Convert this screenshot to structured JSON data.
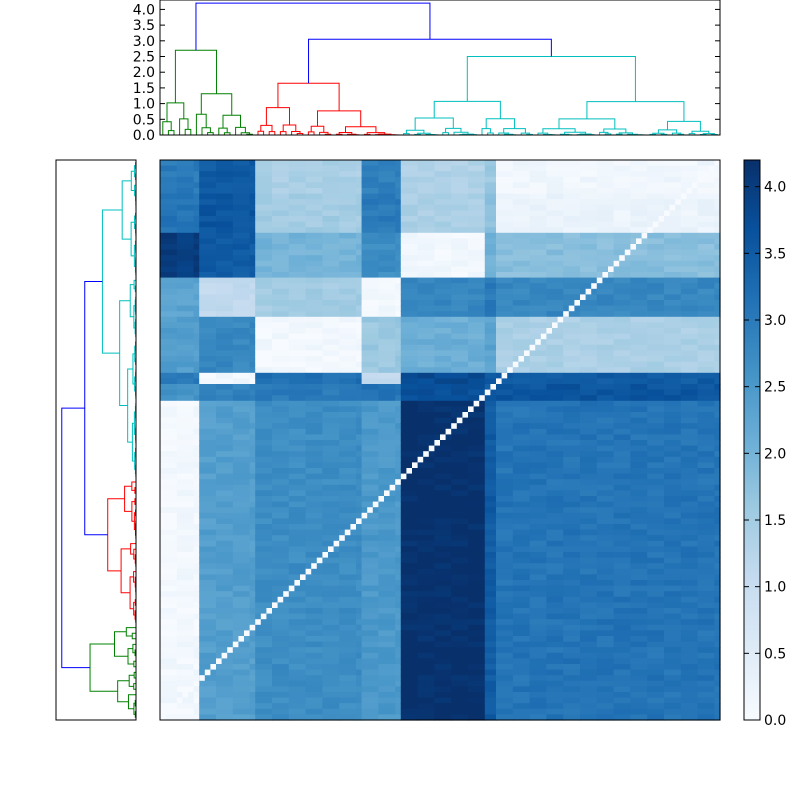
{
  "chart_data": [
    {
      "type": "dendrogram",
      "orientation": "top",
      "title": "",
      "xlabel": "",
      "ylabel": "",
      "ylim": [
        0,
        4.3
      ],
      "y_ticks": [
        0.0,
        0.5,
        1.0,
        1.5,
        2.0,
        2.5,
        3.0,
        3.5,
        4.0
      ],
      "y_tick_labels": [
        "0.0",
        "0.5",
        "1.0",
        "1.5",
        "2.0",
        "2.5",
        "3.0",
        "3.5",
        "4.0"
      ],
      "cluster_colors": {
        "link": "#0000ff",
        "green": "#008000",
        "red": "#ff0000",
        "cyan": "#00bfbf"
      },
      "clusters": [
        {
          "color": "green",
          "leaf_range": [
            0,
            17
          ],
          "merge_height": 2.7
        },
        {
          "color": "red",
          "leaf_range": [
            17,
            43
          ],
          "merge_height": 1.65
        },
        {
          "color": "cyan",
          "leaf_range": [
            43,
            100
          ],
          "merge_height": 2.5
        }
      ],
      "top_links": [
        {
          "between": [
            "red",
            "cyan"
          ],
          "height": 3.05
        },
        {
          "between": [
            "green",
            "red+cyan"
          ],
          "height": 4.2
        }
      ]
    },
    {
      "type": "dendrogram",
      "orientation": "left",
      "title": "",
      "xlabel": "",
      "ylabel": "",
      "axis_ticks_shown": false,
      "clusters": [
        {
          "color": "green",
          "position": "bottom",
          "merge_height": 2.6
        },
        {
          "color": "red",
          "position": "middle",
          "merge_height": 1.6
        },
        {
          "color": "cyan",
          "position": "top",
          "merge_height": 1.9
        }
      ],
      "top_links": [
        {
          "between": [
            "red",
            "cyan"
          ],
          "height": 2.9
        },
        {
          "between": [
            "green",
            "red+cyan"
          ],
          "height": 4.2
        }
      ]
    },
    {
      "type": "heatmap",
      "title": "",
      "xlabel": "",
      "ylabel": "",
      "colormap": "Blues",
      "n_cells": 100,
      "x_block_bounds": [
        0,
        7,
        17,
        36,
        43,
        58,
        60,
        100
      ],
      "y_block_bounds": [
        0,
        6,
        13,
        21,
        28,
        38,
        40,
        43,
        100
      ],
      "block_values": [
        [
          3.0,
          3.5,
          1.4,
          2.9,
          1.35,
          1.6,
          0.15
        ],
        [
          3.1,
          3.6,
          1.5,
          3.0,
          1.4,
          1.7,
          0.25
        ],
        [
          4.0,
          3.5,
          2.0,
          2.7,
          0.1,
          2.0,
          1.8
        ],
        [
          2.3,
          1.1,
          1.5,
          0.1,
          2.8,
          3.0,
          2.8
        ],
        [
          2.4,
          2.8,
          0.1,
          1.6,
          2.1,
          2.3,
          1.4
        ],
        [
          3.0,
          0.1,
          3.2,
          1.0,
          3.8,
          3.6,
          3.5
        ],
        [
          2.6,
          2.9,
          3.0,
          3.1,
          3.7,
          3.5,
          3.6
        ],
        [
          0.1,
          2.4,
          2.7,
          2.5,
          4.2,
          3.5,
          3.1
        ]
      ]
    },
    {
      "type": "colorbar",
      "colormap": "Blues",
      "ylim": [
        0,
        4.2
      ],
      "ticks": [
        0.0,
        0.5,
        1.0,
        1.5,
        2.0,
        2.5,
        3.0,
        3.5,
        4.0
      ],
      "tick_labels": [
        "0.0",
        "0.5",
        "1.0",
        "1.5",
        "2.0",
        "2.5",
        "3.0",
        "3.5",
        "4.0"
      ]
    }
  ]
}
